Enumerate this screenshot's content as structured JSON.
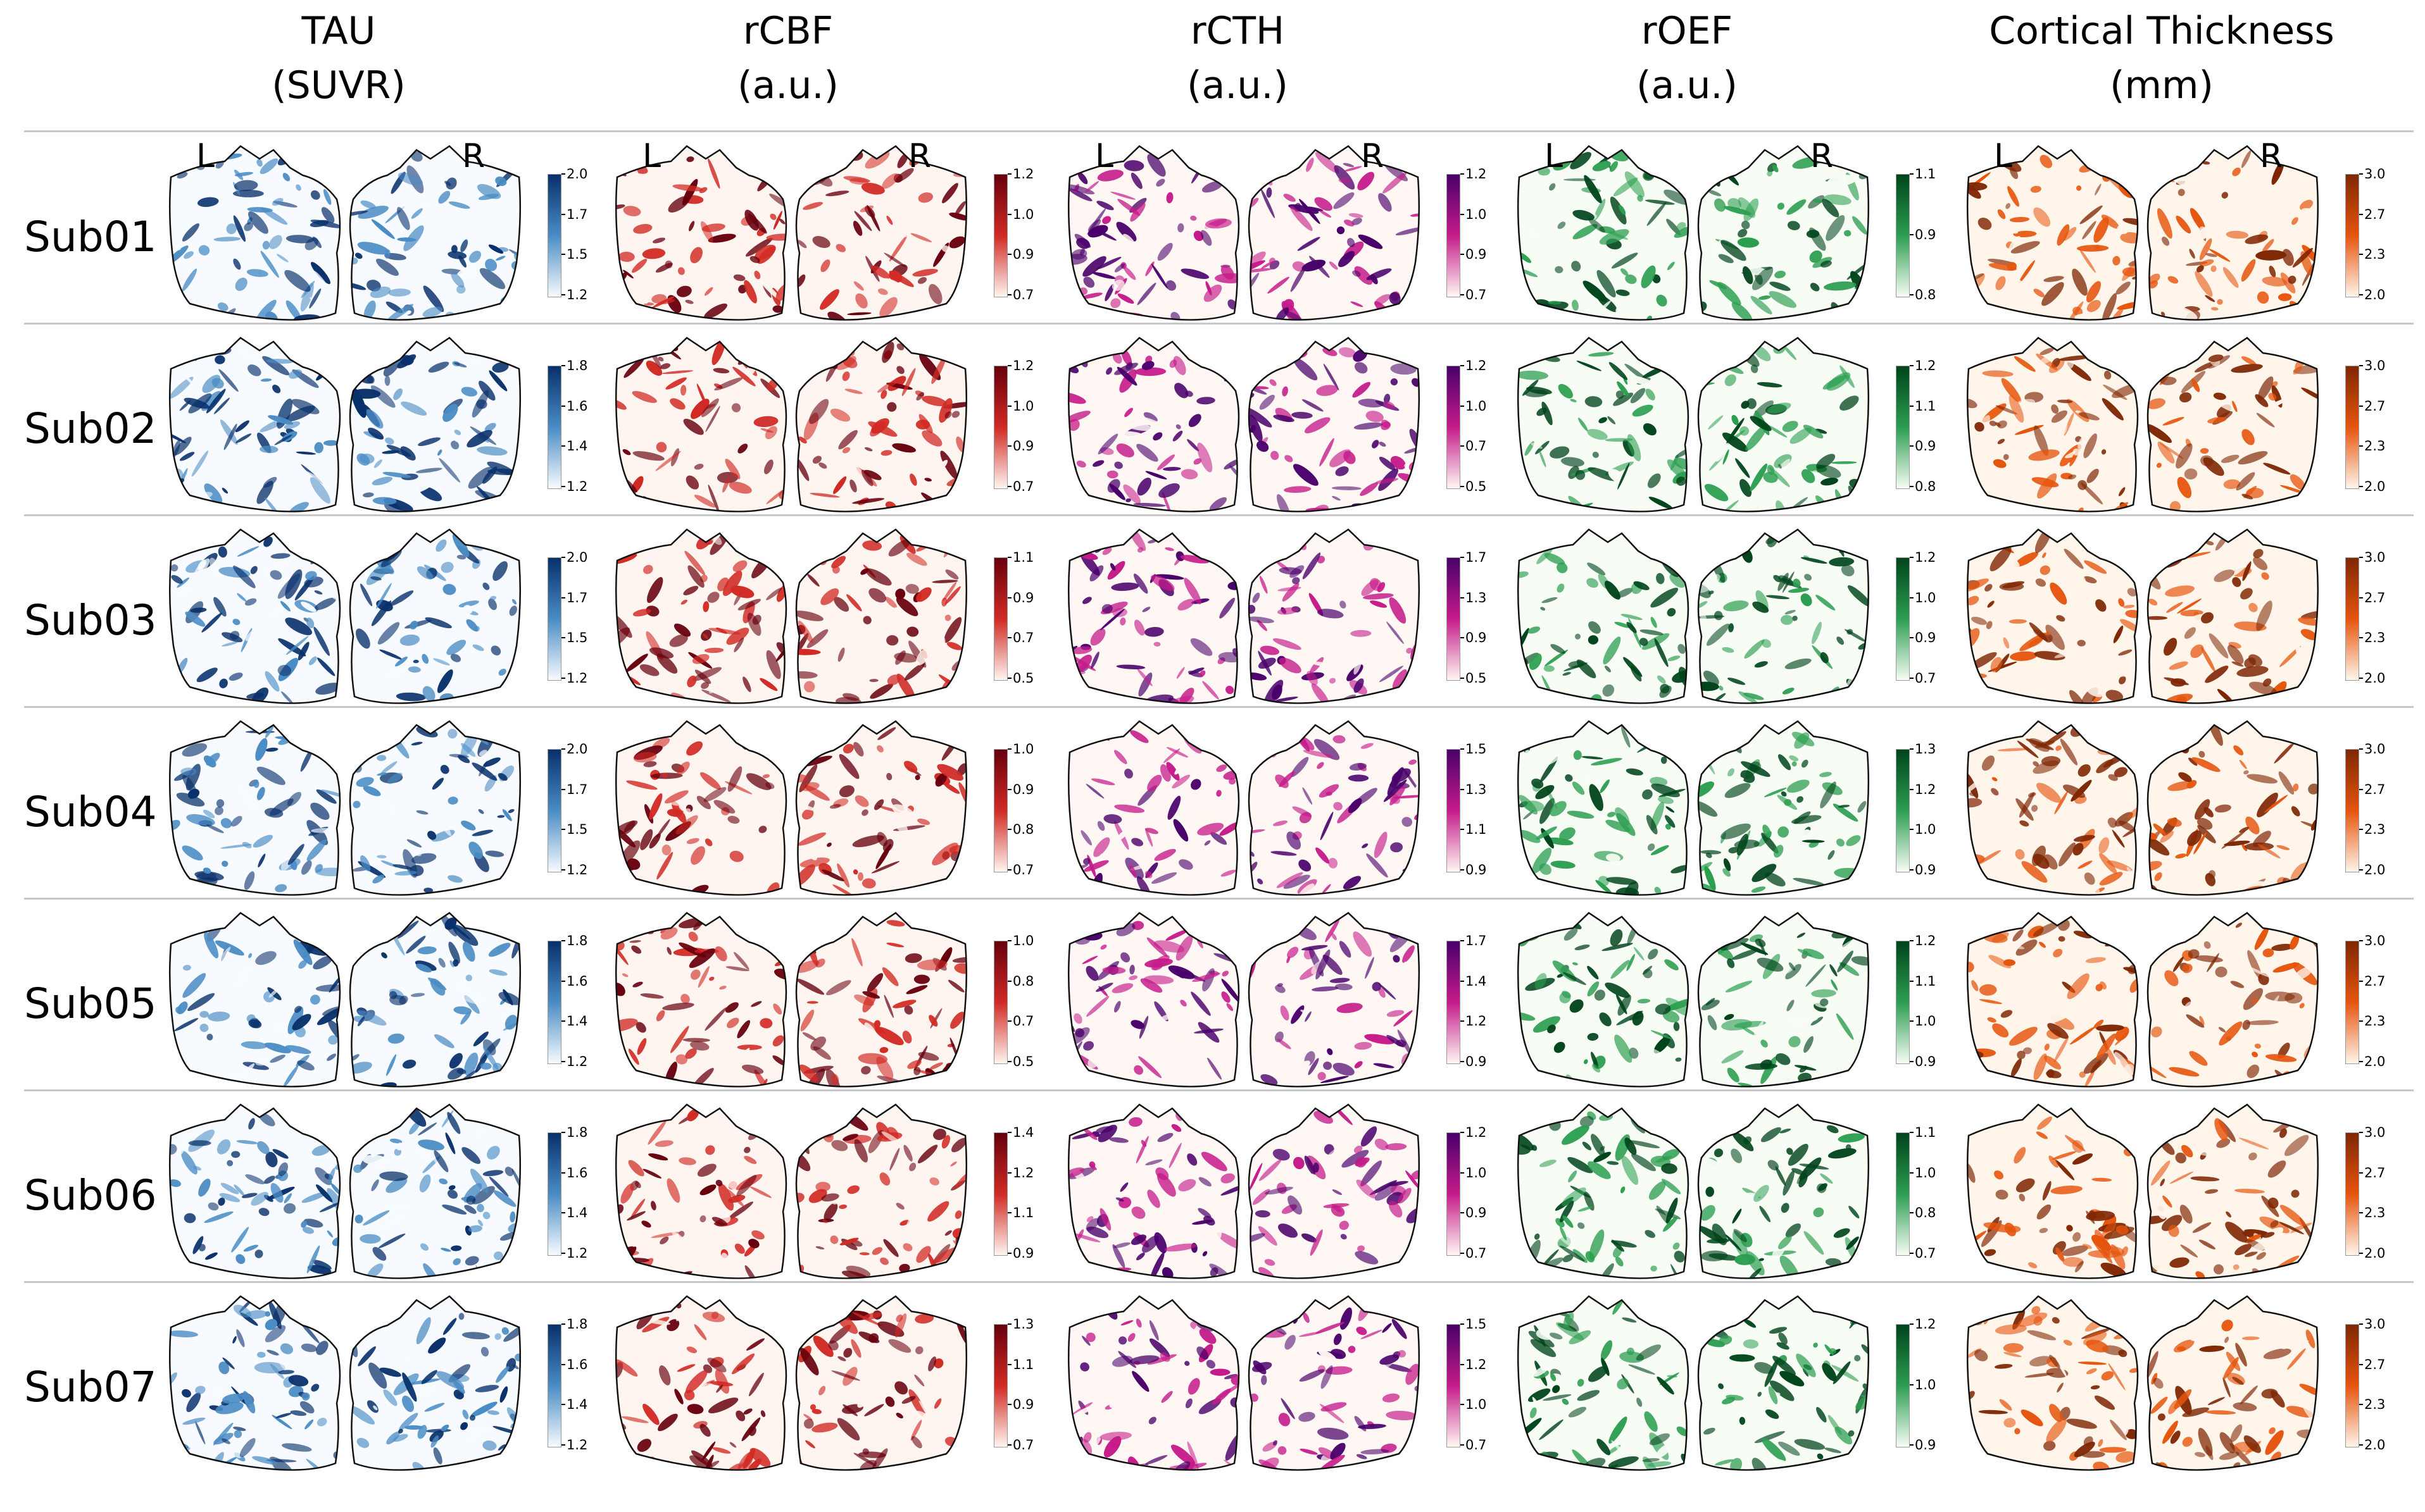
{
  "columns": [
    {
      "title": "TAU",
      "unit": "(SUVR)",
      "colormap": "Blues",
      "color_light": "#f7fbff",
      "color_dark": "#08306b",
      "color_mid": "#4a8cc4"
    },
    {
      "title": "rCBF",
      "unit": "(a.u.)",
      "colormap": "Reds",
      "color_light": "#fff5f0",
      "color_dark": "#67000d",
      "color_mid": "#d12a24"
    },
    {
      "title": "rCTH",
      "unit": "(a.u.)",
      "colormap": "RdPu",
      "color_light": "#fff7f3",
      "color_dark": "#49006a",
      "color_mid": "#c51b8a"
    },
    {
      "title": "rOEF",
      "unit": "(a.u.)",
      "colormap": "Greens",
      "color_light": "#f7fcf5",
      "color_dark": "#00441b",
      "color_mid": "#2c9e50"
    },
    {
      "title": "Cortical Thickness",
      "unit": "(mm)",
      "colormap": "Oranges",
      "color_light": "#fff5eb",
      "color_dark": "#7f2704",
      "color_mid": "#e6550d"
    }
  ],
  "hemisphere_labels": [
    "L",
    "R"
  ],
  "rows": [
    {
      "label": "Sub01",
      "colorbars": [
        [
          "2.0",
          "1.7",
          "1.5",
          "1.2"
        ],
        [
          "1.2",
          "1.0",
          "0.9",
          "0.7"
        ],
        [
          "1.2",
          "1.0",
          "0.9",
          "0.7"
        ],
        [
          "1.1",
          "0.9",
          "0.8"
        ],
        [
          "3.0",
          "2.7",
          "2.3",
          "2.0"
        ]
      ]
    },
    {
      "label": "Sub02",
      "colorbars": [
        [
          "1.8",
          "1.6",
          "1.4",
          "1.2"
        ],
        [
          "1.2",
          "1.0",
          "0.9",
          "0.7"
        ],
        [
          "1.2",
          "1.0",
          "0.7",
          "0.5"
        ],
        [
          "1.2",
          "1.1",
          "0.9",
          "0.8"
        ],
        [
          "3.0",
          "2.7",
          "2.3",
          "2.0"
        ]
      ]
    },
    {
      "label": "Sub03",
      "colorbars": [
        [
          "2.0",
          "1.7",
          "1.5",
          "1.2"
        ],
        [
          "1.1",
          "0.9",
          "0.7",
          "0.5"
        ],
        [
          "1.7",
          "1.3",
          "0.9",
          "0.5"
        ],
        [
          "1.2",
          "1.0",
          "0.9",
          "0.7"
        ],
        [
          "3.0",
          "2.7",
          "2.3",
          "2.0"
        ]
      ]
    },
    {
      "label": "Sub04",
      "colorbars": [
        [
          "2.0",
          "1.7",
          "1.5",
          "1.2"
        ],
        [
          "1.0",
          "0.9",
          "0.8",
          "0.7"
        ],
        [
          "1.5",
          "1.3",
          "1.1",
          "0.9"
        ],
        [
          "1.3",
          "1.2",
          "1.0",
          "0.9"
        ],
        [
          "3.0",
          "2.7",
          "2.3",
          "2.0"
        ]
      ]
    },
    {
      "label": "Sub05",
      "colorbars": [
        [
          "1.8",
          "1.6",
          "1.4",
          "1.2"
        ],
        [
          "1.0",
          "0.8",
          "0.7",
          "0.5"
        ],
        [
          "1.7",
          "1.4",
          "1.2",
          "0.9"
        ],
        [
          "1.2",
          "1.1",
          "1.0",
          "0.9"
        ],
        [
          "3.0",
          "2.7",
          "2.3",
          "2.0"
        ]
      ]
    },
    {
      "label": "Sub06",
      "colorbars": [
        [
          "1.8",
          "1.6",
          "1.4",
          "1.2"
        ],
        [
          "1.4",
          "1.2",
          "1.1",
          "0.9"
        ],
        [
          "1.2",
          "1.0",
          "0.9",
          "0.7"
        ],
        [
          "1.1",
          "1.0",
          "0.8",
          "0.7"
        ],
        [
          "3.0",
          "2.7",
          "2.3",
          "2.0"
        ]
      ]
    },
    {
      "label": "Sub07",
      "colorbars": [
        [
          "1.8",
          "1.6",
          "1.4",
          "1.2"
        ],
        [
          "1.3",
          "1.1",
          "0.9",
          "0.7"
        ],
        [
          "1.5",
          "1.2",
          "1.0",
          "0.7"
        ],
        [
          "1.2",
          "1.0",
          "0.9"
        ],
        [
          "3.0",
          "2.7",
          "2.3",
          "2.0"
        ]
      ]
    }
  ]
}
